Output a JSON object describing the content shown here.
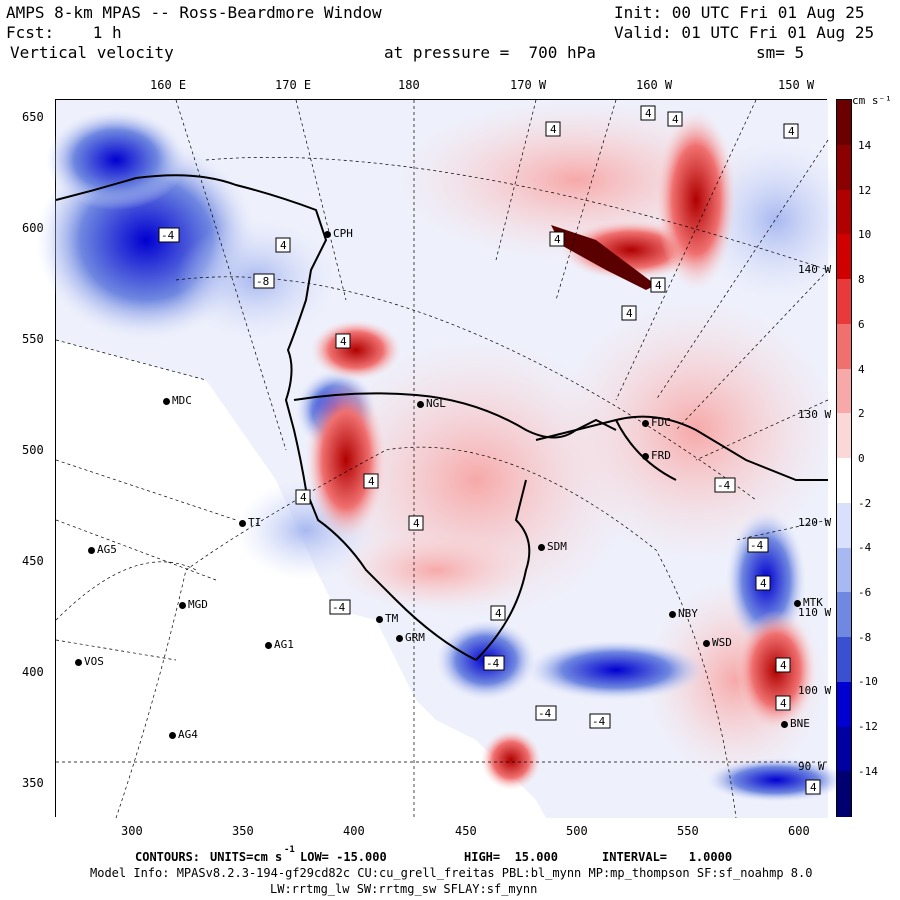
{
  "header": {
    "title": "AMPS 8-km MPAS -- Ross-Beardmore Window",
    "init": "Init: 00 UTC Fri 01 Aug 25",
    "fcst": "Fcst:    1 h",
    "valid": "Valid: 01 UTC Fri 01 Aug 25",
    "field": "Vertical velocity",
    "pressure": "at pressure =  700 hPa",
    "smooth": "sm= 5"
  },
  "top_ticks": [
    "160 E",
    "170 E",
    "180",
    "170 W",
    "160 W",
    "150 W"
  ],
  "left_ticks": [
    "650",
    "600",
    "550",
    "500",
    "450",
    "400",
    "350"
  ],
  "bottom_ticks": [
    "300",
    "350",
    "400",
    "450",
    "500",
    "550",
    "600"
  ],
  "colorbar": {
    "units": "cm s⁻¹",
    "labels": [
      "14",
      "12",
      "10",
      "8",
      "6",
      "4",
      "2",
      "0",
      "-2",
      "-4",
      "-6",
      "-8",
      "-10",
      "-12",
      "-14"
    ],
    "colors": [
      "#6a0000",
      "#8b0000",
      "#b00000",
      "#d00000",
      "#e83a3a",
      "#f07070",
      "#f7a8a8",
      "#fbd8d8",
      "#ffffff",
      "#d8e0fb",
      "#a8b8f0",
      "#7088e0",
      "#3a50d0",
      "#0000d0",
      "#0000a0",
      "#000070"
    ]
  },
  "chart_data": {
    "type": "heatmap",
    "title": "Vertical velocity",
    "xlim": [
      265,
      610
    ],
    "ylim": [
      333,
      660
    ],
    "low": -15.0,
    "high": 15.0,
    "interval": 1.0,
    "units": "cm s-1"
  },
  "stations": [
    {
      "name": "MDC",
      "x": 166,
      "y": 401
    },
    {
      "name": "NGL",
      "x": 420,
      "y": 404
    },
    {
      "name": "FDC",
      "x": 645,
      "y": 423
    },
    {
      "name": "FRD",
      "x": 645,
      "y": 456
    },
    {
      "name": "SDM",
      "x": 541,
      "y": 547
    },
    {
      "name": "AG5",
      "x": 91,
      "y": 550
    },
    {
      "name": "MGD",
      "x": 182,
      "y": 605
    },
    {
      "name": "TM",
      "x": 379,
      "y": 619
    },
    {
      "name": "GRM",
      "x": 399,
      "y": 638
    },
    {
      "name": "AG1",
      "x": 268,
      "y": 645
    },
    {
      "name": "VOS",
      "x": 78,
      "y": 662
    },
    {
      "name": "NBY",
      "x": 672,
      "y": 614
    },
    {
      "name": "WSD",
      "x": 706,
      "y": 643
    },
    {
      "name": "MTK",
      "x": 797,
      "y": 603
    },
    {
      "name": "AG4",
      "x": 172,
      "y": 735
    },
    {
      "name": "BNE",
      "x": 784,
      "y": 724
    },
    {
      "name": "CPH",
      "x": 327,
      "y": 234
    },
    {
      "name": "TI",
      "x": 242,
      "y": 523
    }
  ],
  "box_labels": [
    "4",
    "-4",
    "-8"
  ],
  "side_labels": [
    "140 W",
    "130 W",
    "120 W",
    "110 W",
    "100 W",
    "90 W"
  ],
  "footer": {
    "contours_label": "CONTOURS:",
    "units_label": "UNITS=cm s",
    "units_exp": "-1",
    "low": "LOW= -15.000",
    "high": "HIGH=  15.000",
    "interval": "INTERVAL=   1.0000",
    "model_info": "Model Info: MPASv8.2.3-194-gf29cd82c CU:cu_grell_freitas PBL:bl_mynn MP:mp_thompson SF:sf_noahmp 8.0",
    "model_info2": "LW:rrtmg_lw SW:rrtmg_sw SFLAY:sf_mynn"
  }
}
